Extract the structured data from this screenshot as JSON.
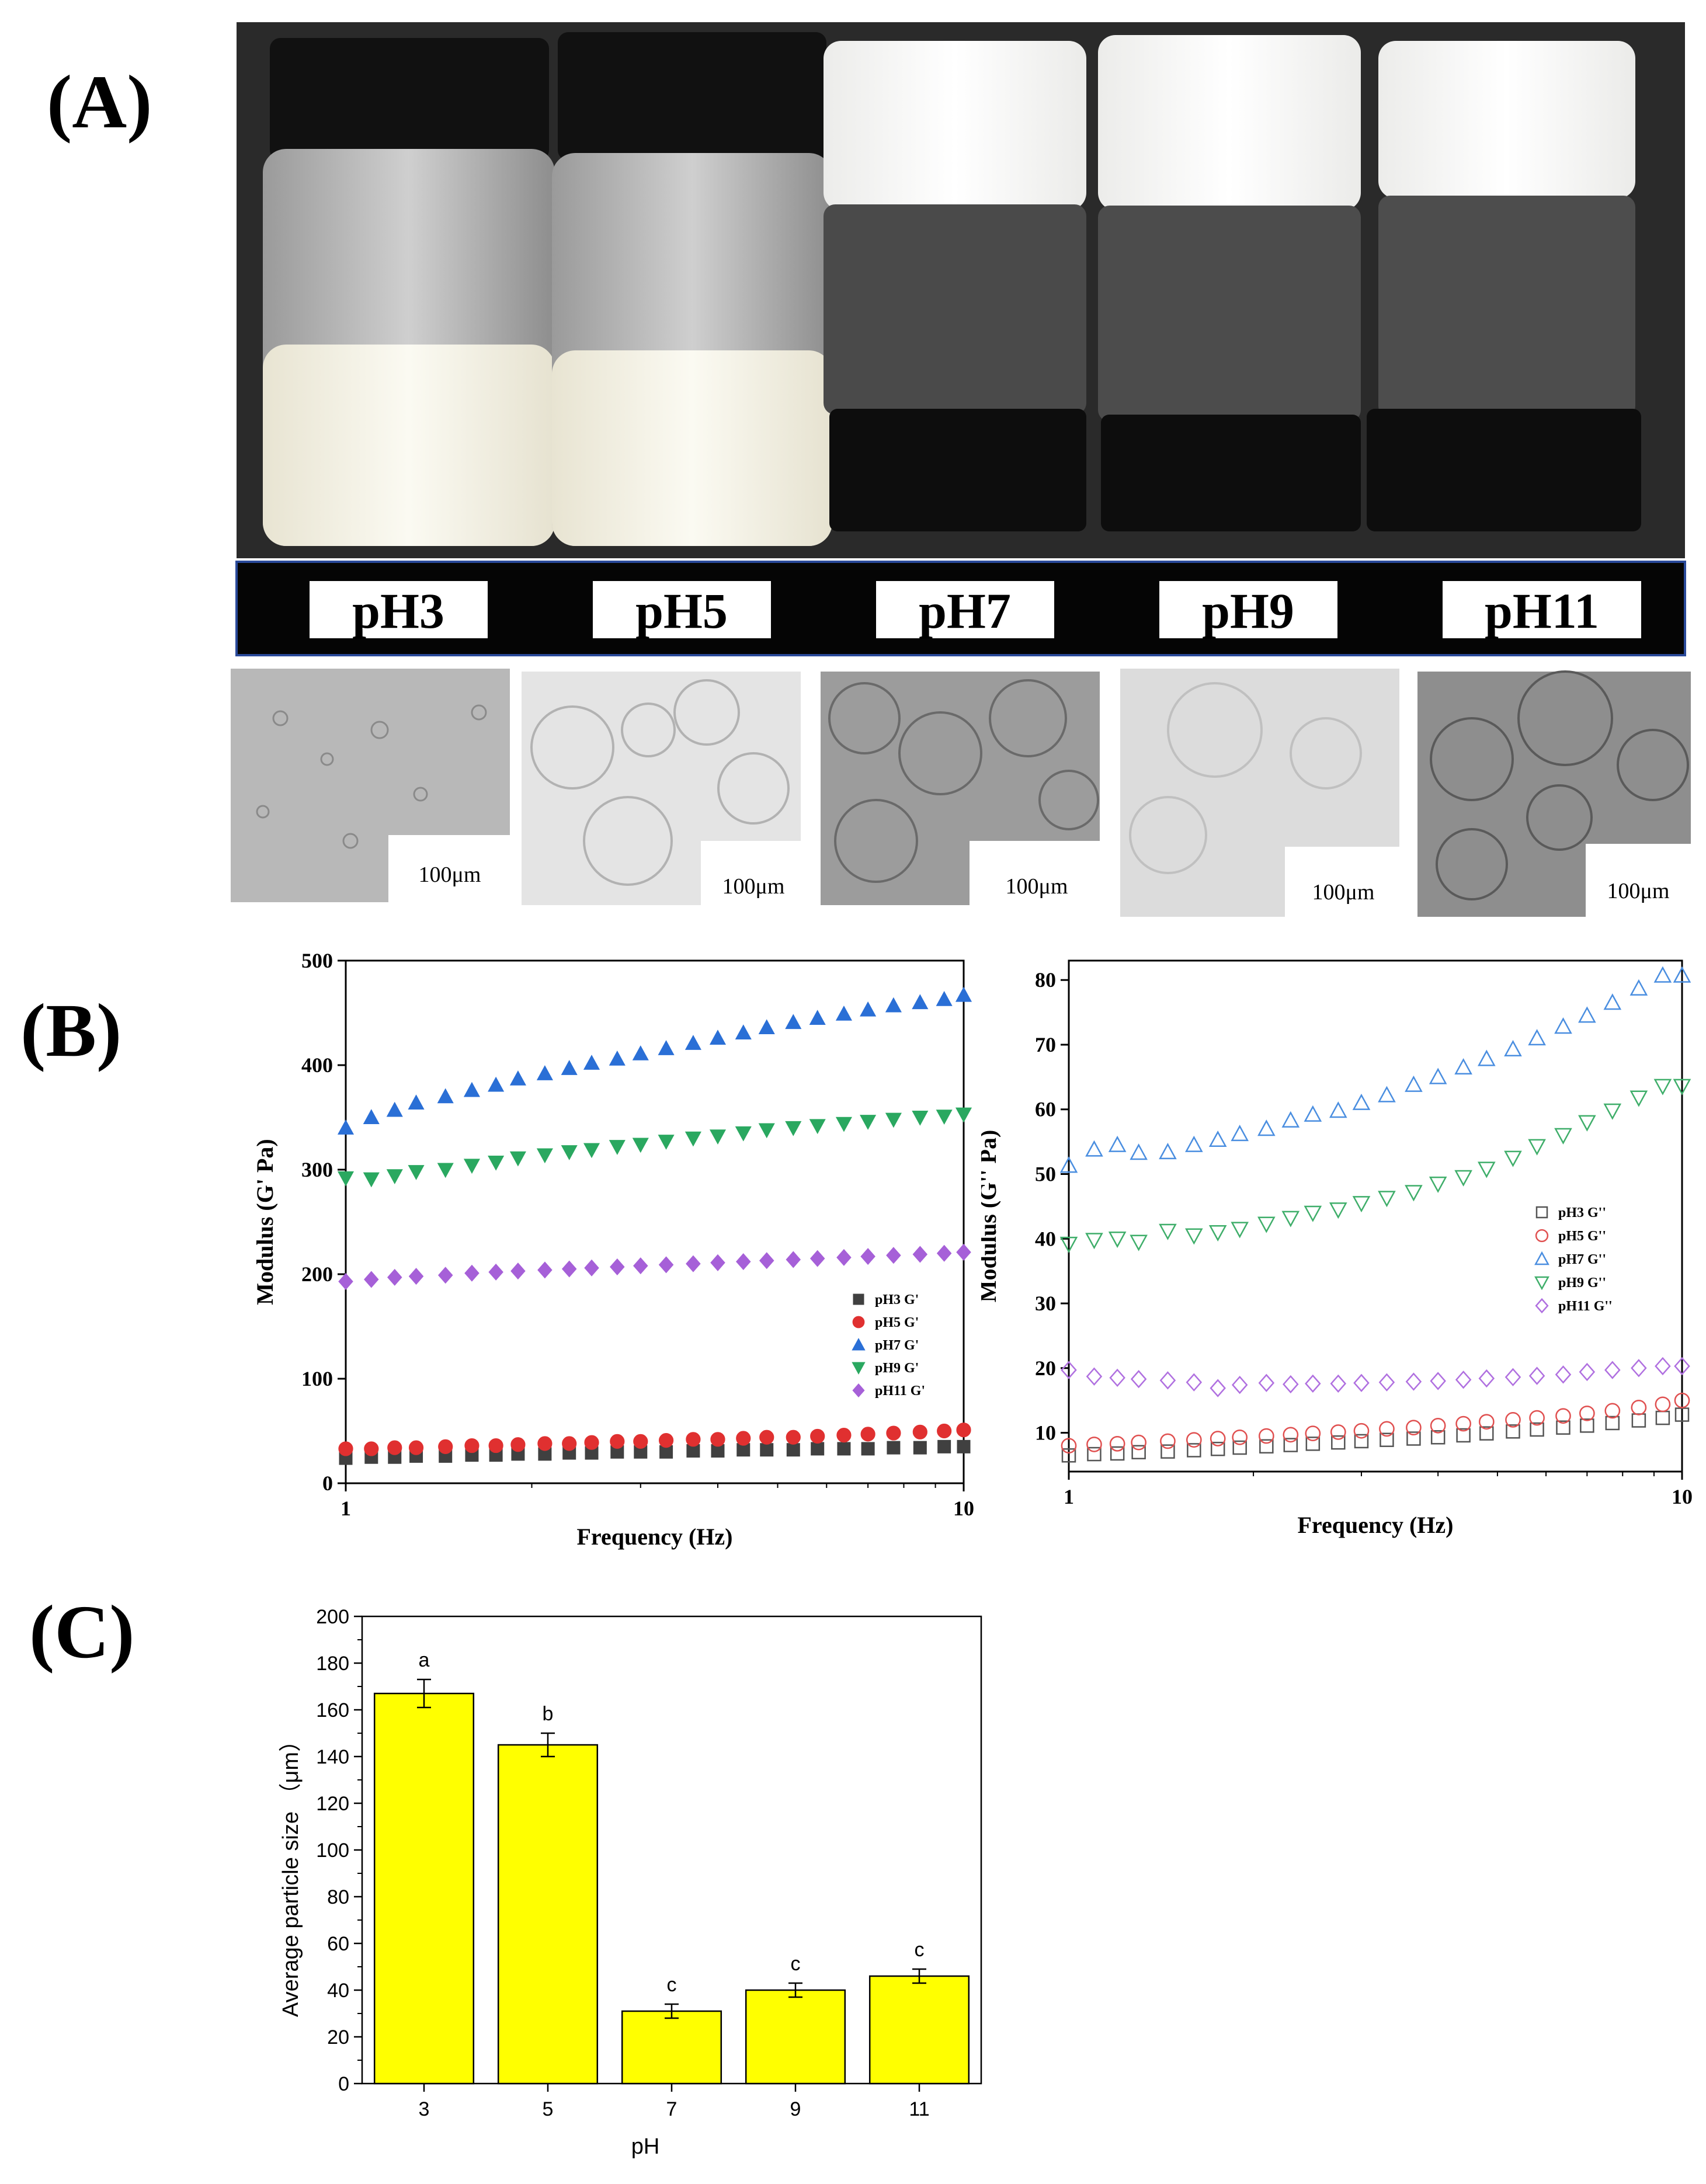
{
  "panels": {
    "a": "(A)",
    "b": "(B)",
    "c": "(C)"
  },
  "photo": {
    "vial_labels": [
      "pH3",
      "pH5",
      "pH7",
      "pH9",
      "pH11"
    ],
    "scale_bar_label": "100μm"
  },
  "chart_data": [
    {
      "id": "storage-modulus",
      "type": "scatter",
      "xscale": "log",
      "xlim": [
        1,
        10
      ],
      "ylim": [
        0,
        500
      ],
      "xticks": [
        "1",
        "10"
      ],
      "yticks": [
        "0",
        "100",
        "200",
        "300",
        "400",
        "500"
      ],
      "xlabel": "Frequency (Hz)",
      "ylabel": "Modulus (G' Pa)",
      "legend_position": "lower-right",
      "x": [
        1,
        1.1,
        1.2,
        1.3,
        1.45,
        1.6,
        1.75,
        1.9,
        2.1,
        2.3,
        2.5,
        2.75,
        3,
        3.3,
        3.65,
        4,
        4.4,
        4.8,
        5.3,
        5.8,
        6.4,
        7,
        7.7,
        8.5,
        9.3,
        10
      ],
      "series": [
        {
          "name": "pH3 G'",
          "marker": "square",
          "color": "#404040",
          "values": [
            24,
            25,
            25,
            26,
            26,
            27,
            27,
            28,
            28,
            29,
            29,
            30,
            30,
            30,
            31,
            31,
            32,
            32,
            32,
            33,
            33,
            33,
            34,
            34,
            35,
            35
          ]
        },
        {
          "name": "pH5 G'",
          "marker": "circle",
          "color": "#e03030",
          "values": [
            33,
            33,
            34,
            34,
            35,
            36,
            36,
            37,
            38,
            38,
            39,
            40,
            40,
            41,
            42,
            42,
            43,
            44,
            44,
            45,
            46,
            47,
            48,
            49,
            50,
            51
          ]
        },
        {
          "name": "pH7 G'",
          "marker": "triangle-up",
          "color": "#2a6fd6",
          "values": [
            340,
            350,
            357,
            364,
            370,
            376,
            381,
            387,
            392,
            397,
            402,
            406,
            411,
            416,
            421,
            426,
            431,
            436,
            441,
            445,
            449,
            453,
            457,
            460,
            463,
            467
          ]
        },
        {
          "name": "pH9 G'",
          "marker": "triangle-down",
          "color": "#2aa860",
          "values": [
            292,
            291,
            294,
            298,
            300,
            304,
            307,
            311,
            314,
            317,
            319,
            322,
            324,
            327,
            330,
            332,
            335,
            338,
            340,
            342,
            344,
            346,
            348,
            350,
            351,
            353
          ]
        },
        {
          "name": "pH11 G'",
          "marker": "diamond",
          "color": "#a660d8",
          "values": [
            193,
            195,
            197,
            198,
            199,
            201,
            202,
            203,
            204,
            205,
            206,
            207,
            208,
            209,
            210,
            211,
            212,
            213,
            214,
            215,
            216,
            217,
            218,
            219,
            220,
            221
          ]
        }
      ]
    },
    {
      "id": "loss-modulus",
      "type": "scatter",
      "xscale": "log",
      "xlim": [
        1,
        10
      ],
      "ylim": [
        4,
        83
      ],
      "xticks": [
        "1",
        "10"
      ],
      "yticks": [
        "10",
        "20",
        "30",
        "40",
        "50",
        "60",
        "70",
        "80"
      ],
      "xlabel": "Frequency (Hz)",
      "ylabel": "Modulus (G'' Pa)",
      "legend_position": "right",
      "x": [
        1,
        1.1,
        1.2,
        1.3,
        1.45,
        1.6,
        1.75,
        1.9,
        2.1,
        2.3,
        2.5,
        2.75,
        3,
        3.3,
        3.65,
        4,
        4.4,
        4.8,
        5.3,
        5.8,
        6.4,
        7,
        7.7,
        8.5,
        9.3,
        10
      ],
      "series": [
        {
          "name": "pH3 G''",
          "marker": "square-open",
          "color": "#555555",
          "values": [
            6.5,
            6.7,
            6.8,
            7.0,
            7.1,
            7.3,
            7.5,
            7.7,
            7.9,
            8.1,
            8.3,
            8.5,
            8.7,
            8.9,
            9.1,
            9.3,
            9.6,
            9.9,
            10.2,
            10.5,
            10.8,
            11.1,
            11.5,
            11.9,
            12.3,
            12.8
          ]
        },
        {
          "name": "pH5 G''",
          "marker": "circle-open",
          "color": "#e05050",
          "values": [
            8.0,
            8.2,
            8.3,
            8.5,
            8.7,
            8.9,
            9.1,
            9.3,
            9.5,
            9.7,
            9.9,
            10.1,
            10.3,
            10.6,
            10.8,
            11.1,
            11.4,
            11.7,
            12.0,
            12.3,
            12.6,
            13.0,
            13.4,
            13.9,
            14.4,
            15.0
          ]
        },
        {
          "name": "pH7 G''",
          "marker": "triangle-up-open",
          "color": "#4a8ee0",
          "values": [
            51.3,
            53.8,
            54.5,
            53.3,
            53.4,
            54.5,
            55.3,
            56.2,
            57.0,
            58.3,
            59.2,
            59.8,
            61.0,
            62.2,
            63.8,
            65.0,
            66.5,
            67.8,
            69.3,
            71.0,
            72.8,
            74.5,
            76.5,
            78.7,
            80.7,
            80.7
          ]
        },
        {
          "name": "pH9 G''",
          "marker": "triangle-down-open",
          "color": "#3fae6a",
          "values": [
            39.2,
            39.8,
            40.0,
            39.5,
            41.2,
            40.5,
            41.0,
            41.5,
            42.3,
            43.2,
            44.0,
            44.5,
            45.5,
            46.3,
            47.2,
            48.5,
            49.5,
            50.8,
            52.5,
            54.3,
            56.0,
            58.0,
            59.8,
            61.8,
            63.6,
            63.6
          ]
        },
        {
          "name": "pH11 G''",
          "marker": "diamond-open",
          "color": "#b070e0",
          "values": [
            19.7,
            18.7,
            18.5,
            18.3,
            18.1,
            17.8,
            16.9,
            17.4,
            17.7,
            17.5,
            17.6,
            17.6,
            17.7,
            17.8,
            17.9,
            18.0,
            18.2,
            18.4,
            18.6,
            18.8,
            19.0,
            19.4,
            19.7,
            20.0,
            20.3,
            20.3
          ]
        }
      ]
    },
    {
      "id": "particle-size",
      "type": "bar",
      "categories": [
        "3",
        "5",
        "7",
        "9",
        "11"
      ],
      "values": [
        167,
        145,
        31,
        40,
        46
      ],
      "errors": [
        6,
        5,
        3,
        3,
        3
      ],
      "significance": [
        "a",
        "b",
        "c",
        "c",
        "c"
      ],
      "ylim": [
        0,
        200
      ],
      "yticks": [
        "0",
        "20",
        "40",
        "60",
        "80",
        "100",
        "120",
        "140",
        "160",
        "180",
        "200"
      ],
      "xlabel": "pH",
      "ylabel": "Average particle size （μm）",
      "bar_color": "#ffff00"
    }
  ]
}
